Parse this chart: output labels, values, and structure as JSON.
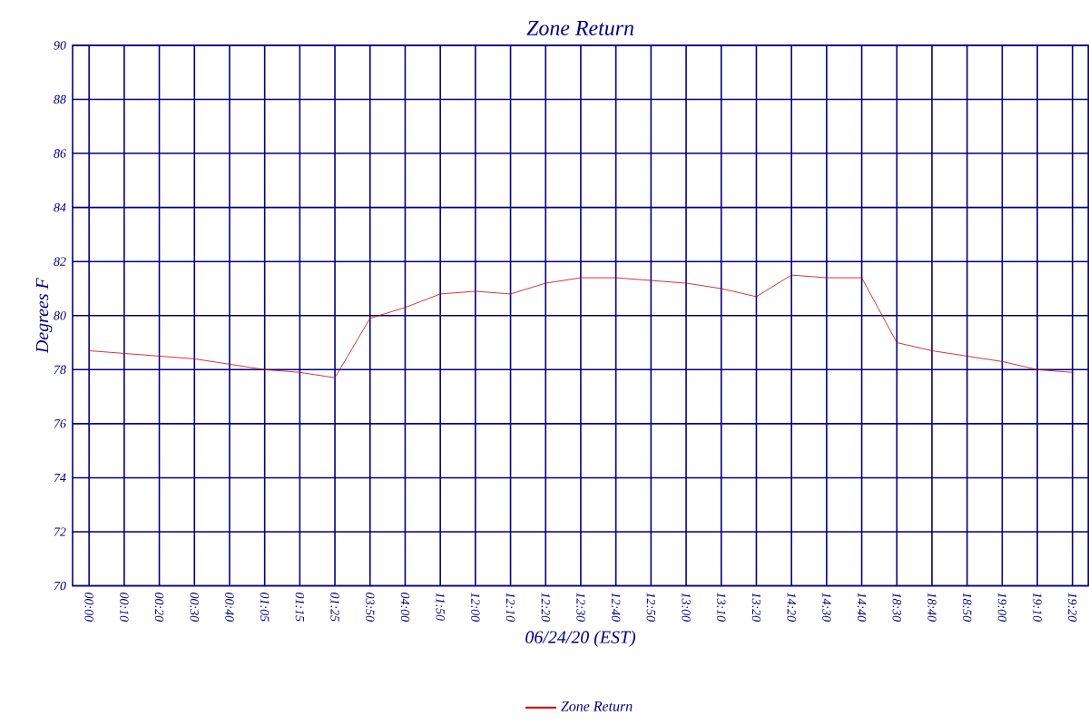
{
  "chart_data": {
    "type": "line",
    "title": "Zone Return",
    "xlabel": "06/24/20 (EST)",
    "ylabel": "Degrees F",
    "categories": [
      "00:00",
      "00:10",
      "00:20",
      "00:30",
      "00:40",
      "01:05",
      "01:15",
      "01:25",
      "03:50",
      "04:00",
      "11:50",
      "12:00",
      "12:10",
      "12:20",
      "12:30",
      "12:40",
      "12:50",
      "13:00",
      "13:10",
      "13:20",
      "14:20",
      "14:30",
      "14:40",
      "18:30",
      "18:40",
      "18:50",
      "19:00",
      "19:10",
      "19:20"
    ],
    "series": [
      {
        "name": "Zone Return",
        "color": "#cc0000",
        "values": [
          78.7,
          78.6,
          78.5,
          78.4,
          78.2,
          78.0,
          77.9,
          77.7,
          79.9,
          80.3,
          80.8,
          80.9,
          80.8,
          81.2,
          81.4,
          81.4,
          81.3,
          81.2,
          81.0,
          80.7,
          81.5,
          81.4,
          81.4,
          79.0,
          78.7,
          78.5,
          78.3,
          78.0,
          77.9
        ]
      }
    ],
    "ylim": [
      70,
      90
    ],
    "yticks": [
      70,
      72,
      74,
      76,
      78,
      80,
      82,
      84,
      86,
      88,
      90
    ],
    "grid": true,
    "legend": "bottom",
    "marker": "none",
    "line_style": "solid"
  }
}
